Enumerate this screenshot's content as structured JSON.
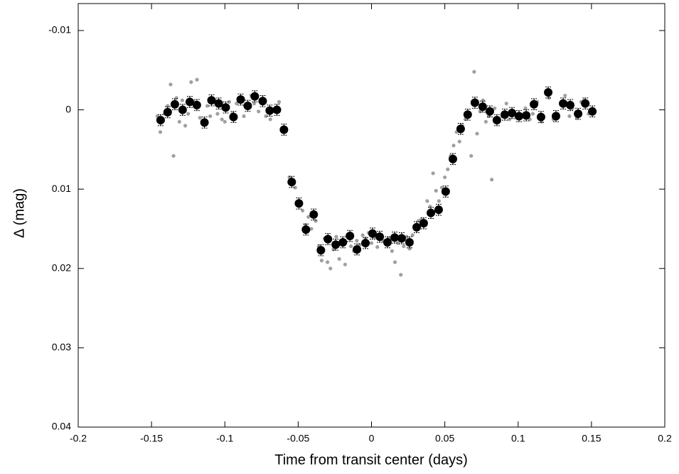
{
  "chart_data": {
    "type": "scatter",
    "xlabel": "Time from transit center (days)",
    "ylabel": "Δ (mag)",
    "xlim": [
      -0.2,
      0.2
    ],
    "xticks": [
      -0.2,
      -0.15,
      -0.1,
      -0.05,
      0,
      0.05,
      0.1,
      0.15,
      0.2
    ],
    "ylim": [
      0.04,
      -0.0134
    ],
    "yticks": [
      -0.01,
      0,
      0.01,
      0.02,
      0.03,
      0.04
    ],
    "grid": false,
    "series": [
      {
        "color": "#a0a0a0",
        "x": [
          -0.146,
          -0.144,
          -0.141,
          -0.139,
          -0.137,
          -0.135,
          -0.133,
          -0.131,
          -0.129,
          -0.127,
          -0.125,
          -0.123,
          -0.121,
          -0.119,
          -0.117,
          -0.115,
          -0.112,
          -0.11,
          -0.107,
          -0.105,
          -0.102,
          -0.1,
          -0.097,
          -0.095,
          -0.092,
          -0.09,
          -0.087,
          -0.085,
          -0.082,
          -0.08,
          -0.077,
          -0.074,
          -0.072,
          -0.069,
          -0.066,
          -0.063,
          -0.056,
          -0.052,
          -0.049,
          -0.047,
          -0.045,
          -0.043,
          -0.041,
          -0.038,
          -0.036,
          -0.034,
          -0.032,
          -0.03,
          -0.028,
          -0.026,
          -0.024,
          -0.022,
          -0.02,
          -0.018,
          -0.016,
          -0.014,
          -0.012,
          -0.01,
          -0.008,
          -0.006,
          -0.004,
          -0.002,
          0,
          0.002,
          0.004,
          0.006,
          0.008,
          0.01,
          0.012,
          0.014,
          0.016,
          0.018,
          0.02,
          0.022,
          0.024,
          0.026,
          0.028,
          0.03,
          0.032,
          0.034,
          0.036,
          0.038,
          0.04,
          0.042,
          0.044,
          0.046,
          0.048,
          0.05,
          0.052,
          0.054,
          0.056,
          0.058,
          0.06,
          0.062,
          0.064,
          0.066,
          0.068,
          0.07,
          0.072,
          0.074,
          0.076,
          0.078,
          0.08,
          0.082,
          0.084,
          0.087,
          0.089,
          0.092,
          0.094,
          0.097,
          0.099,
          0.102,
          0.105,
          0.108,
          0.11,
          0.113,
          0.116,
          0.119,
          0.121,
          0.124,
          0.127,
          0.129,
          0.132,
          0.135,
          0.137,
          0.14,
          0.143,
          0.145,
          0.148,
          0.15
        ],
        "values": [
          0.0008,
          0.0028,
          0.0005,
          -0.0005,
          -0.0032,
          0.0058,
          -0.0015,
          0.0015,
          -0.0012,
          0.002,
          0.0005,
          -0.0035,
          -0.001,
          -0.0038,
          0.001,
          0.0018,
          -0.0005,
          0.0008,
          -0.0012,
          0.0005,
          0.0012,
          0.0015,
          -0.001,
          0.0005,
          -0.0008,
          -0.0015,
          0.0008,
          -0.0004,
          -0.0018,
          -0.0008,
          0.0002,
          -0.001,
          0.0008,
          0.0012,
          0.0002,
          -0.001,
          0.0085,
          0.0098,
          0.0115,
          0.0127,
          0.0145,
          0.0135,
          0.015,
          0.014,
          0.0172,
          0.019,
          0.0162,
          0.0192,
          0.02,
          0.0176,
          0.016,
          0.0188,
          0.0165,
          0.0195,
          0.016,
          0.0172,
          0.0178,
          0.0165,
          0.017,
          0.0158,
          0.0162,
          0.0155,
          0.0168,
          0.016,
          0.0173,
          0.0158,
          0.0165,
          0.017,
          0.0162,
          0.0178,
          0.0192,
          0.0168,
          0.0208,
          0.0172,
          0.016,
          0.0175,
          0.0158,
          0.015,
          0.014,
          0.0138,
          0.0145,
          0.0115,
          0.0122,
          0.008,
          0.0102,
          0.0115,
          0.0098,
          0.0085,
          0.0075,
          0.0058,
          0.0045,
          0.0028,
          0.004,
          0.002,
          0.0012,
          0.0005,
          0.0058,
          -0.0048,
          0.003,
          0.0002,
          -0.0012,
          0.0015,
          0.0008,
          0.0088,
          -0.0002,
          0.0015,
          0.0008,
          -0.0008,
          0.0012,
          0.0005,
          0.001,
          0.0008,
          -0.0002,
          0.0012,
          0.0005,
          -0.001,
          0.0015,
          -0.0022,
          -0.0015,
          0.0012,
          0.0005,
          -0.0008,
          -0.0018,
          0.0008,
          -0.0002,
          0.001,
          -0.001,
          -0.0012,
          0.0005,
          0.0002
        ]
      },
      {
        "color": "#000000",
        "x": [
          -0.1438,
          -0.139,
          -0.1341,
          -0.1288,
          -0.1239,
          -0.1191,
          -0.1139,
          -0.1091,
          -0.1042,
          -0.0994,
          -0.0941,
          -0.0892,
          -0.0844,
          -0.0796,
          -0.0742,
          -0.0694,
          -0.0645,
          -0.0597,
          -0.0544,
          -0.0495,
          -0.0447,
          -0.0394,
          -0.0345,
          -0.0297,
          -0.0244,
          -0.0195,
          -0.0147,
          -0.0099,
          -0.0041,
          0.0007,
          0.0056,
          0.0109,
          0.0158,
          0.0206,
          0.0259,
          0.0308,
          0.0356,
          0.0405,
          0.0458,
          0.0506,
          0.0555,
          0.0608,
          0.0656,
          0.0705,
          0.0758,
          0.0807,
          0.0855,
          0.0909,
          0.0958,
          0.1006,
          0.1055,
          0.1108,
          0.1156,
          0.1205,
          0.1258,
          0.1307,
          0.1355,
          0.1409,
          0.1458,
          0.1506
        ],
        "values": [
          0.0013,
          0.0003,
          -0.0007,
          0,
          -0.001,
          -0.0006,
          0.0016,
          -0.0012,
          -0.0008,
          -0.0003,
          0.0009,
          -0.0013,
          -0.0005,
          -0.0017,
          -0.0011,
          0.0001,
          0,
          0.0025,
          0.0091,
          0.0118,
          0.0151,
          0.0132,
          0.0177,
          0.0163,
          0.017,
          0.0167,
          0.0159,
          0.0176,
          0.0168,
          0.0156,
          0.016,
          0.0167,
          0.0161,
          0.0162,
          0.0167,
          0.0148,
          0.0143,
          0.013,
          0.0126,
          0.0103,
          0.0062,
          0.0024,
          0.0006,
          -0.0009,
          -0.0004,
          0.0002,
          0.0013,
          0.0006,
          0.0004,
          0.0008,
          0.0007,
          -0.0007,
          0.0009,
          -0.0022,
          0.0008,
          -0.0008,
          -0.0006,
          0.0005,
          -0.0008,
          0.0002
        ],
        "yerr": [
          0.0007,
          0.0007,
          0.0007,
          0.0007,
          0.0007,
          0.0007,
          0.0007,
          0.0007,
          0.0007,
          0.0007,
          0.0007,
          0.0007,
          0.0007,
          0.0007,
          0.0007,
          0.0007,
          0.0007,
          0.0007,
          0.0007,
          0.0007,
          0.0007,
          0.0007,
          0.0007,
          0.0007,
          0.0007,
          0.0007,
          0.0007,
          0.0007,
          0.0007,
          0.0007,
          0.0007,
          0.0007,
          0.0007,
          0.0007,
          0.0007,
          0.0007,
          0.0007,
          0.0007,
          0.0007,
          0.0007,
          0.0007,
          0.0007,
          0.0007,
          0.0007,
          0.0007,
          0.0007,
          0.0007,
          0.0007,
          0.0007,
          0.0007,
          0.0007,
          0.0007,
          0.0007,
          0.0007,
          0.0007,
          0.0007,
          0.0007,
          0.0007,
          0.0007,
          0.0007
        ]
      }
    ]
  }
}
